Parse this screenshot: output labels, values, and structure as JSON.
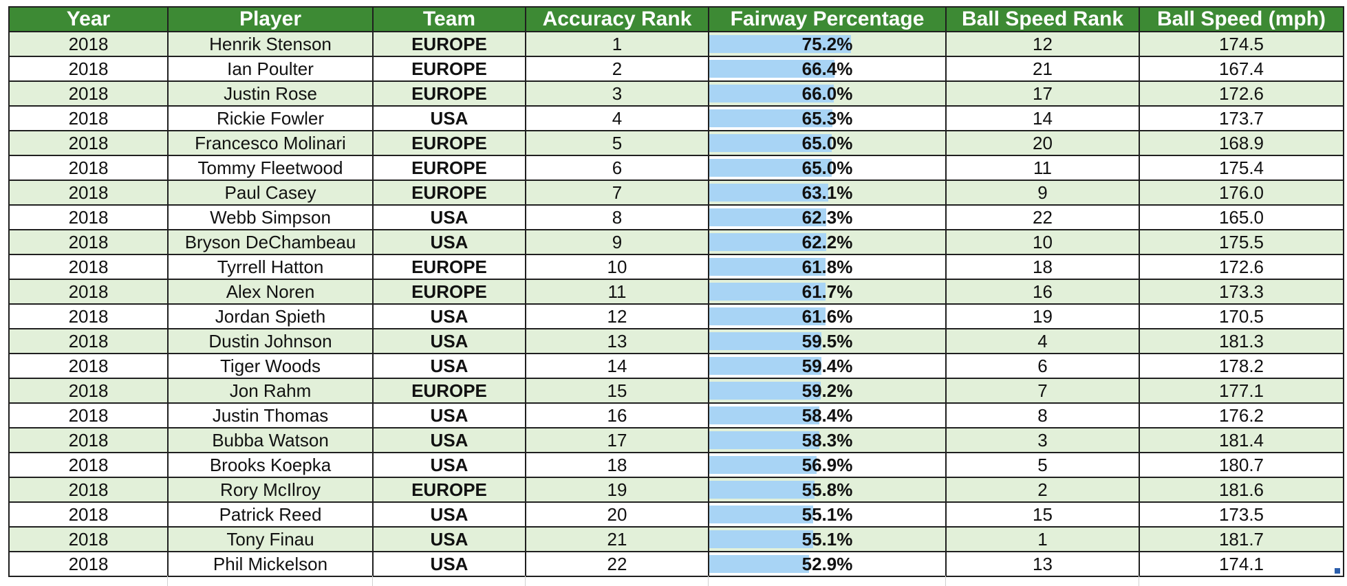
{
  "headers": [
    "Year",
    "Player",
    "Team",
    "Accuracy Rank",
    "Fairway Percentage",
    "Ball Speed Rank",
    "Ball Speed (mph)"
  ],
  "colors": {
    "header_bg": "#3d8a34",
    "header_text": "#ffffff",
    "band_row": "#e2f0d9",
    "plain_row": "#ffffff",
    "europe": "#2f6fbf",
    "usa": "#e8271b",
    "databar": "#a8d4f5"
  },
  "databar_max_percent": 75.2,
  "rows": [
    {
      "year": "2018",
      "player": "Henrik Stenson",
      "team": "EUROPE",
      "accuracy_rank": "1",
      "fairway_pct": "75.2%",
      "fairway_value": 75.2,
      "ball_speed_rank": "12",
      "ball_speed": "174.5"
    },
    {
      "year": "2018",
      "player": "Ian Poulter",
      "team": "EUROPE",
      "accuracy_rank": "2",
      "fairway_pct": "66.4%",
      "fairway_value": 66.4,
      "ball_speed_rank": "21",
      "ball_speed": "167.4"
    },
    {
      "year": "2018",
      "player": "Justin Rose",
      "team": "EUROPE",
      "accuracy_rank": "3",
      "fairway_pct": "66.0%",
      "fairway_value": 66.0,
      "ball_speed_rank": "17",
      "ball_speed": "172.6"
    },
    {
      "year": "2018",
      "player": "Rickie Fowler",
      "team": "USA",
      "accuracy_rank": "4",
      "fairway_pct": "65.3%",
      "fairway_value": 65.3,
      "ball_speed_rank": "14",
      "ball_speed": "173.7"
    },
    {
      "year": "2018",
      "player": "Francesco Molinari",
      "team": "EUROPE",
      "accuracy_rank": "5",
      "fairway_pct": "65.0%",
      "fairway_value": 65.0,
      "ball_speed_rank": "20",
      "ball_speed": "168.9"
    },
    {
      "year": "2018",
      "player": "Tommy Fleetwood",
      "team": "EUROPE",
      "accuracy_rank": "6",
      "fairway_pct": "65.0%",
      "fairway_value": 65.0,
      "ball_speed_rank": "11",
      "ball_speed": "175.4"
    },
    {
      "year": "2018",
      "player": "Paul Casey",
      "team": "EUROPE",
      "accuracy_rank": "7",
      "fairway_pct": "63.1%",
      "fairway_value": 63.1,
      "ball_speed_rank": "9",
      "ball_speed": "176.0"
    },
    {
      "year": "2018",
      "player": "Webb Simpson",
      "team": "USA",
      "accuracy_rank": "8",
      "fairway_pct": "62.3%",
      "fairway_value": 62.3,
      "ball_speed_rank": "22",
      "ball_speed": "165.0"
    },
    {
      "year": "2018",
      "player": "Bryson DeChambeau",
      "team": "USA",
      "accuracy_rank": "9",
      "fairway_pct": "62.2%",
      "fairway_value": 62.2,
      "ball_speed_rank": "10",
      "ball_speed": "175.5"
    },
    {
      "year": "2018",
      "player": "Tyrrell Hatton",
      "team": "EUROPE",
      "accuracy_rank": "10",
      "fairway_pct": "61.8%",
      "fairway_value": 61.8,
      "ball_speed_rank": "18",
      "ball_speed": "172.6"
    },
    {
      "year": "2018",
      "player": "Alex Noren",
      "team": "EUROPE",
      "accuracy_rank": "11",
      "fairway_pct": "61.7%",
      "fairway_value": 61.7,
      "ball_speed_rank": "16",
      "ball_speed": "173.3"
    },
    {
      "year": "2018",
      "player": "Jordan Spieth",
      "team": "USA",
      "accuracy_rank": "12",
      "fairway_pct": "61.6%",
      "fairway_value": 61.6,
      "ball_speed_rank": "19",
      "ball_speed": "170.5"
    },
    {
      "year": "2018",
      "player": "Dustin Johnson",
      "team": "USA",
      "accuracy_rank": "13",
      "fairway_pct": "59.5%",
      "fairway_value": 59.5,
      "ball_speed_rank": "4",
      "ball_speed": "181.3"
    },
    {
      "year": "2018",
      "player": "Tiger Woods",
      "team": "USA",
      "accuracy_rank": "14",
      "fairway_pct": "59.4%",
      "fairway_value": 59.4,
      "ball_speed_rank": "6",
      "ball_speed": "178.2"
    },
    {
      "year": "2018",
      "player": "Jon Rahm",
      "team": "EUROPE",
      "accuracy_rank": "15",
      "fairway_pct": "59.2%",
      "fairway_value": 59.2,
      "ball_speed_rank": "7",
      "ball_speed": "177.1"
    },
    {
      "year": "2018",
      "player": "Justin Thomas",
      "team": "USA",
      "accuracy_rank": "16",
      "fairway_pct": "58.4%",
      "fairway_value": 58.4,
      "ball_speed_rank": "8",
      "ball_speed": "176.2"
    },
    {
      "year": "2018",
      "player": "Bubba Watson",
      "team": "USA",
      "accuracy_rank": "17",
      "fairway_pct": "58.3%",
      "fairway_value": 58.3,
      "ball_speed_rank": "3",
      "ball_speed": "181.4"
    },
    {
      "year": "2018",
      "player": "Brooks Koepka",
      "team": "USA",
      "accuracy_rank": "18",
      "fairway_pct": "56.9%",
      "fairway_value": 56.9,
      "ball_speed_rank": "5",
      "ball_speed": "180.7"
    },
    {
      "year": "2018",
      "player": "Rory McIlroy",
      "team": "EUROPE",
      "accuracy_rank": "19",
      "fairway_pct": "55.8%",
      "fairway_value": 55.8,
      "ball_speed_rank": "2",
      "ball_speed": "181.6"
    },
    {
      "year": "2018",
      "player": "Patrick Reed",
      "team": "USA",
      "accuracy_rank": "20",
      "fairway_pct": "55.1%",
      "fairway_value": 55.1,
      "ball_speed_rank": "15",
      "ball_speed": "173.5"
    },
    {
      "year": "2018",
      "player": "Tony Finau",
      "team": "USA",
      "accuracy_rank": "21",
      "fairway_pct": "55.1%",
      "fairway_value": 55.1,
      "ball_speed_rank": "1",
      "ball_speed": "181.7"
    },
    {
      "year": "2018",
      "player": "Phil Mickelson",
      "team": "USA",
      "accuracy_rank": "22",
      "fairway_pct": "52.9%",
      "fairway_value": 52.9,
      "ball_speed_rank": "13",
      "ball_speed": "174.1"
    }
  ]
}
